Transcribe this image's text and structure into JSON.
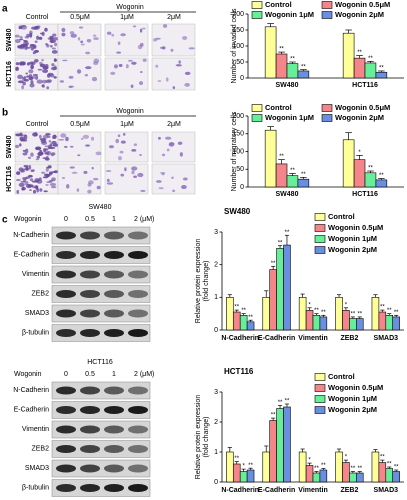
{
  "panels": {
    "a": {
      "letter": "a",
      "group_label": "Wogonin",
      "column_labels": [
        "Control",
        "0.5μM",
        "1μM",
        "2μM"
      ],
      "row_labels": [
        "SW480",
        "HCT116"
      ]
    },
    "b": {
      "letter": "b",
      "group_label": "Wogonin",
      "column_labels": [
        "Control",
        "0.5μM",
        "1μM",
        "2μM"
      ],
      "row_labels": [
        "SW480",
        "HCT116"
      ]
    },
    "c": {
      "letter": "c",
      "blots": [
        {
          "title": "SW480",
          "treatment_label": "Wogonin",
          "doses": [
            "0",
            "0.5",
            "1",
            "2 (μM)"
          ],
          "proteins": [
            "N-Cadherin",
            "E-Cadherin",
            "Vimentin",
            "ZEB2",
            "SMAD3",
            "β-tubulin"
          ]
        },
        {
          "title": "HCT116",
          "treatment_label": "Wogonin",
          "doses": [
            "0",
            "0.5",
            "1",
            "2 (μM)"
          ],
          "proteins": [
            "N-Cadherin",
            "E-Cadherin",
            "Vimentin",
            "ZEB2",
            "SMAD3",
            "β-tubulin"
          ]
        }
      ]
    }
  },
  "chart_data": [
    {
      "type": "bar",
      "ylabel": "Number of invaded cells",
      "categories": [
        "SW480",
        "HCT116"
      ],
      "series": [
        {
          "name": "Control",
          "color": "#ffff99",
          "values": [
            160,
            140
          ],
          "errors": [
            10,
            10
          ]
        },
        {
          "name": "Wogonin 0.5μM",
          "color": "#f4858a",
          "values": [
            75,
            62
          ],
          "errors": [
            6,
            8
          ],
          "significance": [
            "**",
            "**"
          ]
        },
        {
          "name": "Wogonin 1μM",
          "color": "#66ee99",
          "values": [
            45,
            47
          ],
          "errors": [
            5,
            5
          ],
          "significance": [
            "**",
            "**"
          ]
        },
        {
          "name": "Wogonin 2μM",
          "color": "#6b8fe0",
          "values": [
            22,
            18
          ],
          "errors": [
            4,
            4
          ],
          "significance": [
            "**",
            "**"
          ]
        }
      ],
      "ylim": [
        0,
        200
      ],
      "yticks": [
        0,
        50,
        100,
        150,
        200
      ],
      "legend": "top"
    },
    {
      "type": "bar",
      "ylabel": "Number of migratory cells",
      "categories": [
        "SW480",
        "HCT116"
      ],
      "series": [
        {
          "name": "Control",
          "color": "#ffff99",
          "values": [
            160,
            133
          ],
          "errors": [
            10,
            20
          ]
        },
        {
          "name": "Wogonin 0.5μM",
          "color": "#f4858a",
          "values": [
            65,
            77
          ],
          "errors": [
            12,
            12
          ],
          "significance": [
            "**",
            "*"
          ]
        },
        {
          "name": "Wogonin 1μM",
          "color": "#66ee99",
          "values": [
            32,
            40
          ],
          "errors": [
            6,
            5
          ],
          "significance": [
            "**",
            "**"
          ]
        },
        {
          "name": "Wogonin 2μM",
          "color": "#6b8fe0",
          "values": [
            22,
            20
          ],
          "errors": [
            5,
            4
          ],
          "significance": [
            "**",
            "**"
          ]
        }
      ],
      "ylim": [
        0,
        200
      ],
      "yticks": [
        0,
        50,
        100,
        150,
        200
      ],
      "legend": "top"
    },
    {
      "type": "bar",
      "title": "SW480",
      "ylabel": [
        "Relative protein expression",
        "(fold change)"
      ],
      "categories": [
        "N-Cadherin",
        "E-Cadherin",
        "Vimentin",
        "ZEB2",
        "SMAD3"
      ],
      "series": [
        {
          "name": "Control",
          "color": "#ffff99",
          "values": [
            1,
            1,
            1,
            1,
            1
          ],
          "errors": [
            0.08,
            0.2,
            0.1,
            0.08,
            0.08
          ]
        },
        {
          "name": "Wogonin 0.5μM",
          "color": "#f4858a",
          "values": [
            0.55,
            1.85,
            0.6,
            0.6,
            0.55
          ],
          "errors": [
            0.06,
            0.1,
            0.08,
            0.08,
            0.06
          ],
          "significance": [
            "**",
            "**",
            "*",
            "*",
            "**"
          ]
        },
        {
          "name": "Wogonin 1μM",
          "color": "#66ee99",
          "values": [
            0.45,
            2.5,
            0.45,
            0.35,
            0.45
          ],
          "errors": [
            0.05,
            0.08,
            0.05,
            0.05,
            0.05
          ],
          "significance": [
            "**",
            "**",
            "**",
            "**",
            "**"
          ]
        },
        {
          "name": "Wogonin 2μM",
          "color": "#6b8fe0",
          "values": [
            0.25,
            2.6,
            0.4,
            0.35,
            0.4
          ],
          "errors": [
            0.05,
            0.3,
            0.05,
            0.05,
            0.05
          ],
          "significance": [
            "**",
            "**",
            "**",
            "**",
            "**"
          ]
        }
      ],
      "ylim": [
        0,
        3
      ],
      "yticks": [
        0,
        1,
        2,
        3
      ],
      "legend": "upper right"
    },
    {
      "type": "bar",
      "title": "HCT116",
      "ylabel": [
        "Relative protein expression",
        "(fold change)"
      ],
      "categories": [
        "N-Cadherin",
        "E-Cadherin",
        "Vimentin",
        "ZEB2",
        "SMAD3"
      ],
      "series": [
        {
          "name": "Control",
          "color": "#ffff99",
          "values": [
            1,
            1,
            1,
            1,
            1
          ],
          "errors": [
            0.15,
            0.2,
            0.1,
            0.1,
            0.08
          ]
        },
        {
          "name": "Wogonin 0.5μM",
          "color": "#f4858a",
          "values": [
            0.6,
            2.05,
            0.55,
            0.65,
            0.65
          ],
          "errors": [
            0.08,
            0.08,
            0.08,
            0.08,
            0.08
          ],
          "significance": [
            "**",
            "**",
            "*",
            "*",
            "**"
          ]
        },
        {
          "name": "Wogonin 1μM",
          "color": "#66ee99",
          "values": [
            0.35,
            2.45,
            0.3,
            0.3,
            0.45
          ],
          "errors": [
            0.08,
            0.1,
            0.05,
            0.05,
            0.05
          ],
          "significance": [
            "*",
            "**",
            "**",
            "**",
            "**"
          ]
        },
        {
          "name": "Wogonin 2μM",
          "color": "#6b8fe0",
          "values": [
            0.4,
            2.5,
            0.4,
            0.3,
            0.35
          ],
          "errors": [
            0.06,
            0.1,
            0.05,
            0.05,
            0.05
          ],
          "significance": [
            "**",
            "**",
            "**",
            "**",
            "**"
          ]
        }
      ],
      "ylim": [
        0,
        3
      ],
      "yticks": [
        0,
        1,
        2,
        3
      ],
      "legend": "upper right"
    }
  ]
}
